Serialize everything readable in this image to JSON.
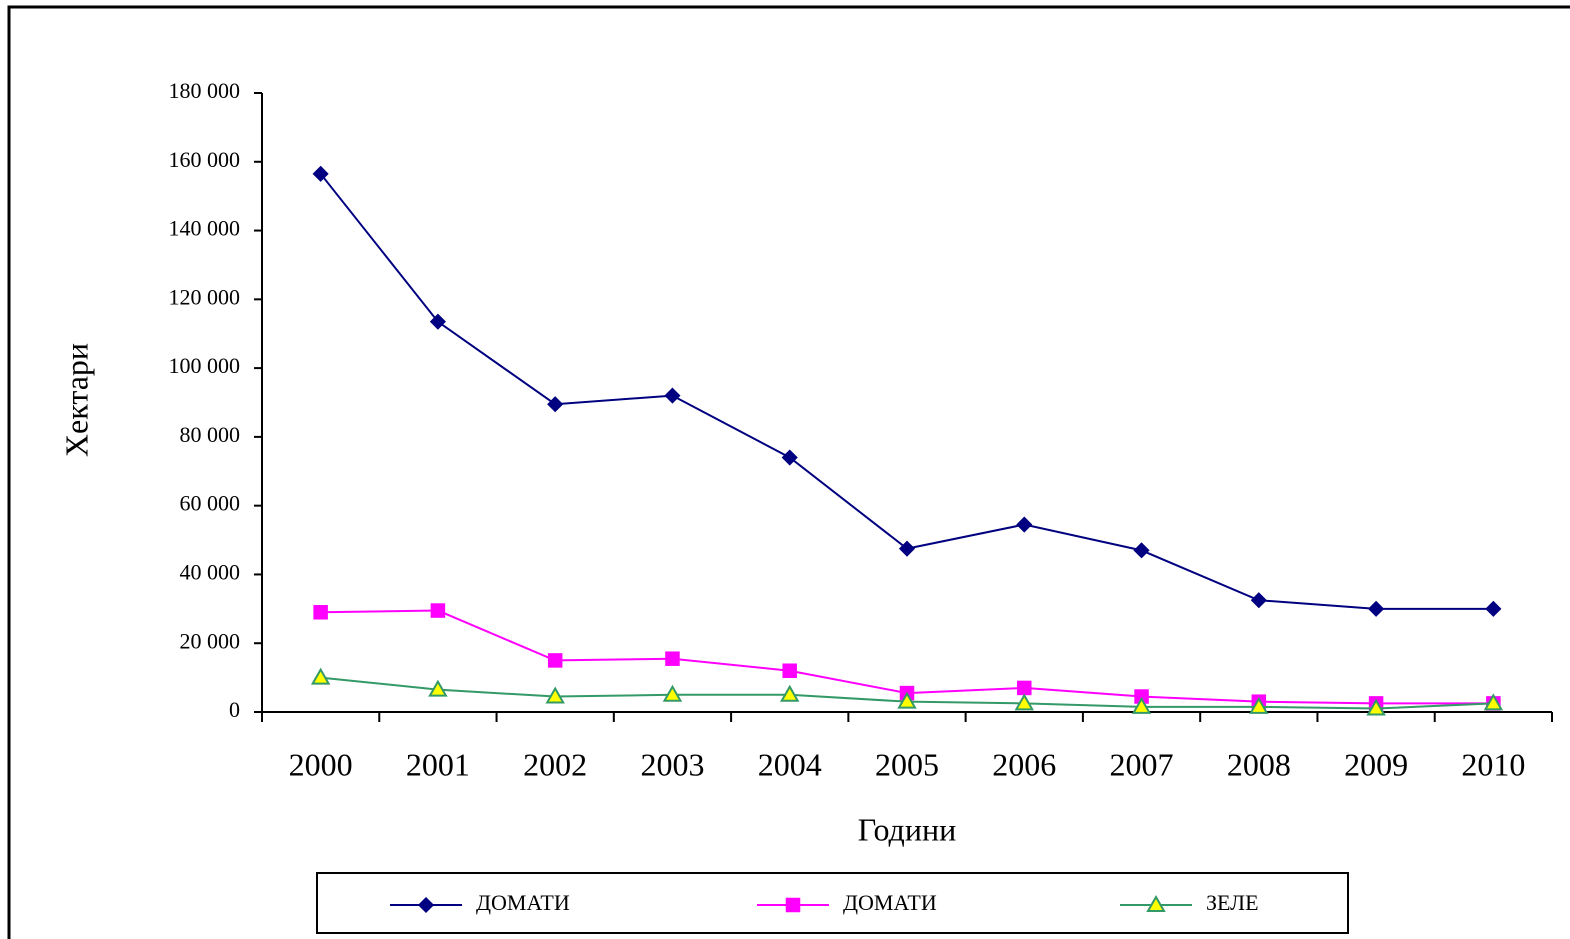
{
  "chart_data": {
    "type": "line",
    "y_label": "Хектари",
    "x_label": "Години",
    "categories": [
      "2000",
      "2001",
      "2002",
      "2003",
      "2004",
      "2005",
      "2006",
      "2007",
      "2008",
      "2009",
      "2010"
    ],
    "series": [
      {
        "name": "ДОМАТИ",
        "color": "#000080",
        "marker": "diamond",
        "values": [
          156500,
          113500,
          89500,
          92000,
          74000,
          47500,
          54500,
          47000,
          32500,
          30000,
          30000
        ]
      },
      {
        "name": "ДОМАТИ",
        "color": "#ff00ff",
        "marker": "square",
        "values": [
          29000,
          29500,
          15000,
          15500,
          12000,
          5500,
          7000,
          4500,
          3000,
          2500,
          2500
        ]
      },
      {
        "name": "ЗЕЛЕ",
        "color": "#339966",
        "marker": "triangle",
        "marker_fill": "#ffff00",
        "values": [
          10000,
          6500,
          4500,
          5000,
          5000,
          3000,
          2500,
          1500,
          1500,
          1000,
          2500
        ]
      }
    ],
    "ylim": [
      0,
      180000
    ],
    "yticks": [
      0,
      {
        "value": 20000,
        "label": "20 000"
      },
      {
        "value": 40000,
        "label": "40 000"
      },
      {
        "value": 60000,
        "label": "60 000"
      },
      {
        "value": 80000,
        "label": "80 000"
      },
      {
        "value": 100000,
        "label": "100 000"
      },
      {
        "value": 120000,
        "label": "120 000"
      },
      {
        "value": 140000,
        "label": "140 000"
      },
      {
        "value": 160000,
        "label": "160 000"
      },
      {
        "value": 180000,
        "label": "180 000"
      }
    ],
    "legend": "bottom"
  }
}
